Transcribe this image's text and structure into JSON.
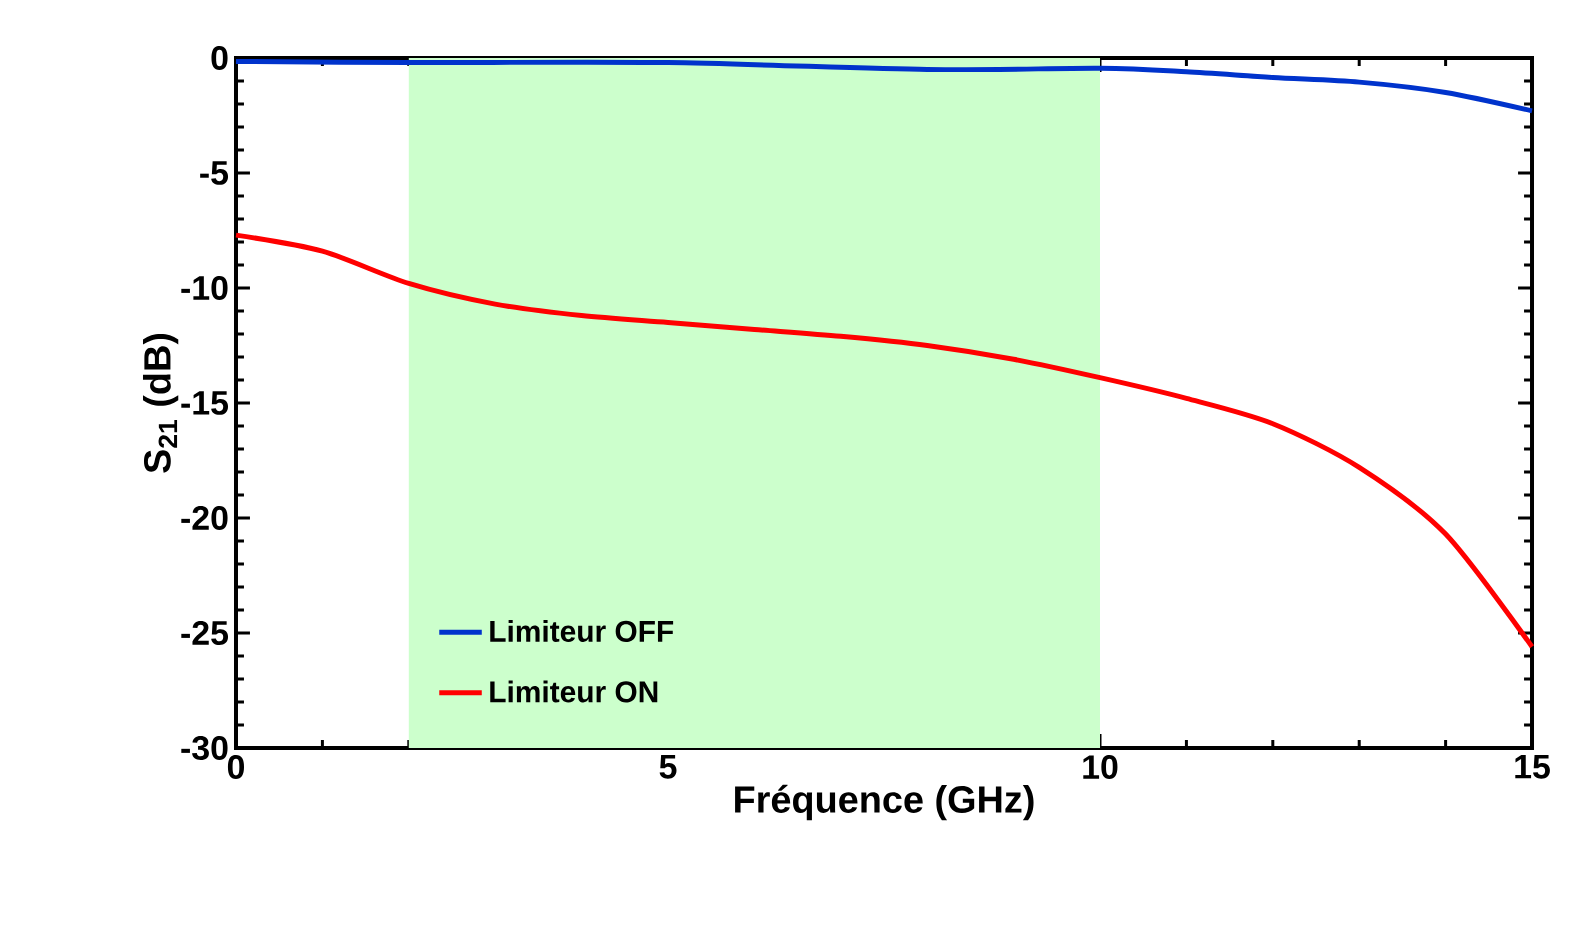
{
  "chart_data": {
    "type": "line",
    "xlabel": "Fréquence (GHz)",
    "ylabel": "S$_{21}$ (dB)",
    "xlim": [
      0,
      15
    ],
    "ylim": [
      -30,
      0
    ],
    "xticks": [
      0,
      5,
      10,
      15
    ],
    "yticks": [
      -30,
      -25,
      -20,
      -15,
      -10,
      -5,
      0
    ],
    "legend": "bottom",
    "grid": false,
    "bands": [
      {
        "axis": "x",
        "from": 2,
        "to": 10,
        "color": "#ccffcc"
      }
    ],
    "series": [
      {
        "name": "Limiteur OFF",
        "color": "#0033cc",
        "x": [
          0,
          2,
          5,
          8,
          10,
          11,
          12,
          13,
          14,
          15
        ],
        "values": [
          -0.15,
          -0.2,
          -0.2,
          -0.5,
          -0.45,
          -0.6,
          -0.85,
          -1.05,
          -1.5,
          -2.3
        ]
      },
      {
        "name": "Limiteur ON",
        "color": "#ff0000",
        "x": [
          0,
          1,
          2,
          3,
          4,
          5,
          6,
          7,
          8,
          9,
          10,
          11,
          12,
          13,
          14,
          15
        ],
        "values": [
          -7.7,
          -8.4,
          -9.8,
          -10.7,
          -11.2,
          -11.5,
          -11.8,
          -12.1,
          -12.5,
          -13.1,
          -13.9,
          -14.8,
          -15.9,
          -17.8,
          -20.7,
          -25.6
        ]
      }
    ]
  }
}
